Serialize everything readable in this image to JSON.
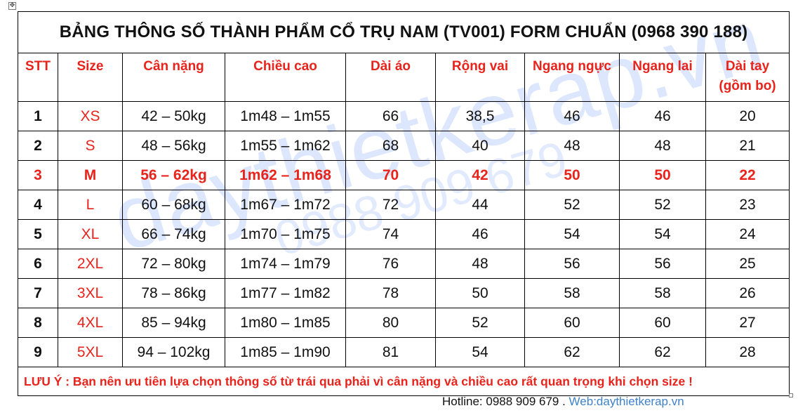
{
  "title": "BẢNG THÔNG SỐ THÀNH PHẨM CỔ TRỤ NAM (TV001) FORM CHUẨN (0968 390 188)",
  "headers": {
    "stt": "STT",
    "size": "Size",
    "weight": "Cân nặng",
    "height": "Chiều cao",
    "length": "Dài áo",
    "shoulder": "Rộng vai",
    "chest": "Ngang ngực",
    "hem": "Ngang lai",
    "sleeve_line1": "Dài tay",
    "sleeve_line2": "(gồm bo)"
  },
  "rows": [
    {
      "stt": "1",
      "size": "XS",
      "weight": "42 – 50kg",
      "height": "1m48 – 1m55",
      "length": "66",
      "shoulder": "38,5",
      "chest": "46",
      "hem": "46",
      "sleeve": "20"
    },
    {
      "stt": "2",
      "size": "S",
      "weight": "48 – 56kg",
      "height": "1m55 – 1m62",
      "length": "68",
      "shoulder": "40",
      "chest": "48",
      "hem": "48",
      "sleeve": "21"
    },
    {
      "stt": "3",
      "size": "M",
      "weight": "56 – 62kg",
      "height": "1m62 – 1m68",
      "length": "70",
      "shoulder": "42",
      "chest": "50",
      "hem": "50",
      "sleeve": "22"
    },
    {
      "stt": "4",
      "size": "L",
      "weight": "60 – 68kg",
      "height": "1m67 – 1m72",
      "length": "72",
      "shoulder": "44",
      "chest": "52",
      "hem": "52",
      "sleeve": "23"
    },
    {
      "stt": "5",
      "size": "XL",
      "weight": "66 – 74kg",
      "height": "1m70 – 1m75",
      "length": "74",
      "shoulder": "46",
      "chest": "54",
      "hem": "54",
      "sleeve": "24"
    },
    {
      "stt": "6",
      "size": "2XL",
      "weight": "72 – 80kg",
      "height": "1m74 – 1m79",
      "length": "76",
      "shoulder": "48",
      "chest": "56",
      "hem": "56",
      "sleeve": "25"
    },
    {
      "stt": "7",
      "size": "3XL",
      "weight": "78 – 86kg",
      "height": "1m77 – 1m82",
      "length": "78",
      "shoulder": "50",
      "chest": "58",
      "hem": "58",
      "sleeve": "26"
    },
    {
      "stt": "8",
      "size": "4XL",
      "weight": "85 – 94kg",
      "height": "1m80 – 1m85",
      "length": "80",
      "shoulder": "52",
      "chest": "60",
      "hem": "60",
      "sleeve": "27"
    },
    {
      "stt": "9",
      "size": "5XL",
      "weight": "94 – 102kg",
      "height": "1m85 – 1m90",
      "length": "81",
      "shoulder": "54",
      "chest": "62",
      "hem": "62",
      "sleeve": "28"
    }
  ],
  "highlight_row_stt": "3",
  "note": "LƯU Ý : Bạn nên ưu tiên lựa chọn thông số từ trái qua phải vì cân nặng và chiều cao rất quan trọng khi chọn size !",
  "footer": {
    "hotline": "Hotline: 0988 909 679 .",
    "web": "Web:daythietkerap.vn"
  },
  "watermark": {
    "site": "daythietkerap.vn",
    "phone": "0988 909 679"
  },
  "icons": {
    "move_handle": "table-move-icon",
    "resize_handle": "table-resize-icon"
  },
  "colors": {
    "accent_red": "#e8231c",
    "footer_link": "#3f82c8",
    "watermark": "#608cf5"
  }
}
